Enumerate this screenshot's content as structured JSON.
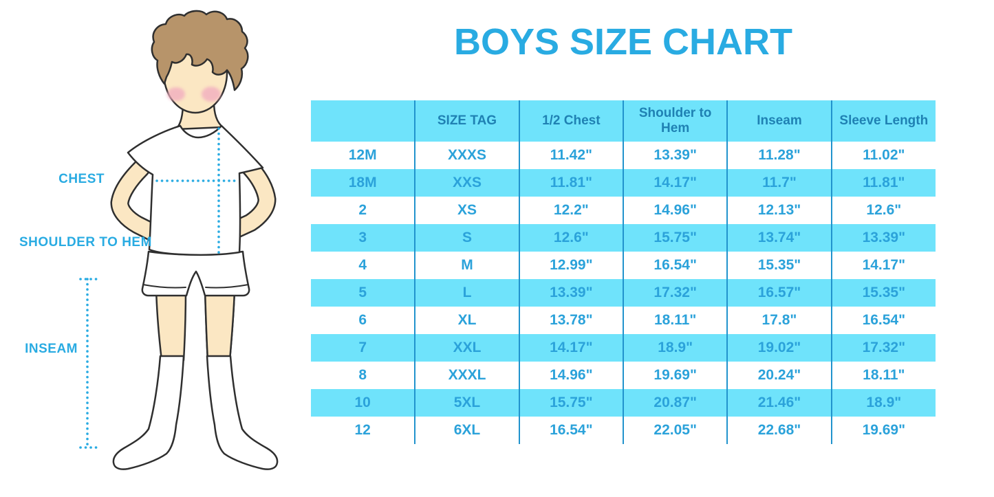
{
  "page": {
    "background": "#FFFFFF"
  },
  "title": "BOYS SIZE CHART",
  "colors": {
    "page_bg": "#FFFFFF",
    "title_blue": "#29ABE2",
    "header_bg": "#6FE3FB",
    "header_text": "#1F81B3",
    "row_alt_bg": "#6FE3FB",
    "row_bg": "#FFFFFF",
    "cell_text": "#2BA2DA",
    "grid_line": "#2193CD",
    "label_blue": "#29ABE2",
    "skin": "#FBE7C3",
    "hair": "#B7946A",
    "cheek": "#F2AEC0",
    "outline": "#2F2F2F"
  },
  "figure": {
    "description": "boy in white t-shirt, shorts and knee socks with dotted measurement guides",
    "labels": {
      "chest": "CHEST",
      "shoulder_to_hem": "SHOULDER TO HEM",
      "inseam": "INSEAM"
    }
  },
  "chart_data": {
    "type": "table",
    "title": "BOYS SIZE CHART",
    "columns": [
      "",
      "SIZE TAG",
      "1/2 Chest",
      "Shoulder to Hem",
      "Inseam",
      "Sleeve Length"
    ],
    "rows": [
      [
        "12M",
        "XXXS",
        "11.42\"",
        "13.39\"",
        "11.28\"",
        "11.02\""
      ],
      [
        "18M",
        "XXS",
        "11.81\"",
        "14.17\"",
        "11.7\"",
        "11.81\""
      ],
      [
        "2",
        "XS",
        "12.2\"",
        "14.96\"",
        "12.13\"",
        "12.6\""
      ],
      [
        "3",
        "S",
        "12.6\"",
        "15.75\"",
        "13.74\"",
        "13.39\""
      ],
      [
        "4",
        "M",
        "12.99\"",
        "16.54\"",
        "15.35\"",
        "14.17\""
      ],
      [
        "5",
        "L",
        "13.39\"",
        "17.32\"",
        "16.57\"",
        "15.35\""
      ],
      [
        "6",
        "XL",
        "13.78\"",
        "18.11\"",
        "17.8\"",
        "16.54\""
      ],
      [
        "7",
        "XXL",
        "14.17\"",
        "18.9\"",
        "19.02\"",
        "17.32\""
      ],
      [
        "8",
        "XXXL",
        "14.96\"",
        "19.69\"",
        "20.24\"",
        "18.11\""
      ],
      [
        "10",
        "5XL",
        "15.75\"",
        "20.87\"",
        "21.46\"",
        "18.9\""
      ],
      [
        "12",
        "6XL",
        "16.54\"",
        "22.05\"",
        "22.68\"",
        "19.69\""
      ]
    ],
    "layout": {
      "striped": true,
      "stripe_rows": "even",
      "grid": "vertical-separators-only",
      "outer_border": false,
      "legend": "none"
    }
  }
}
